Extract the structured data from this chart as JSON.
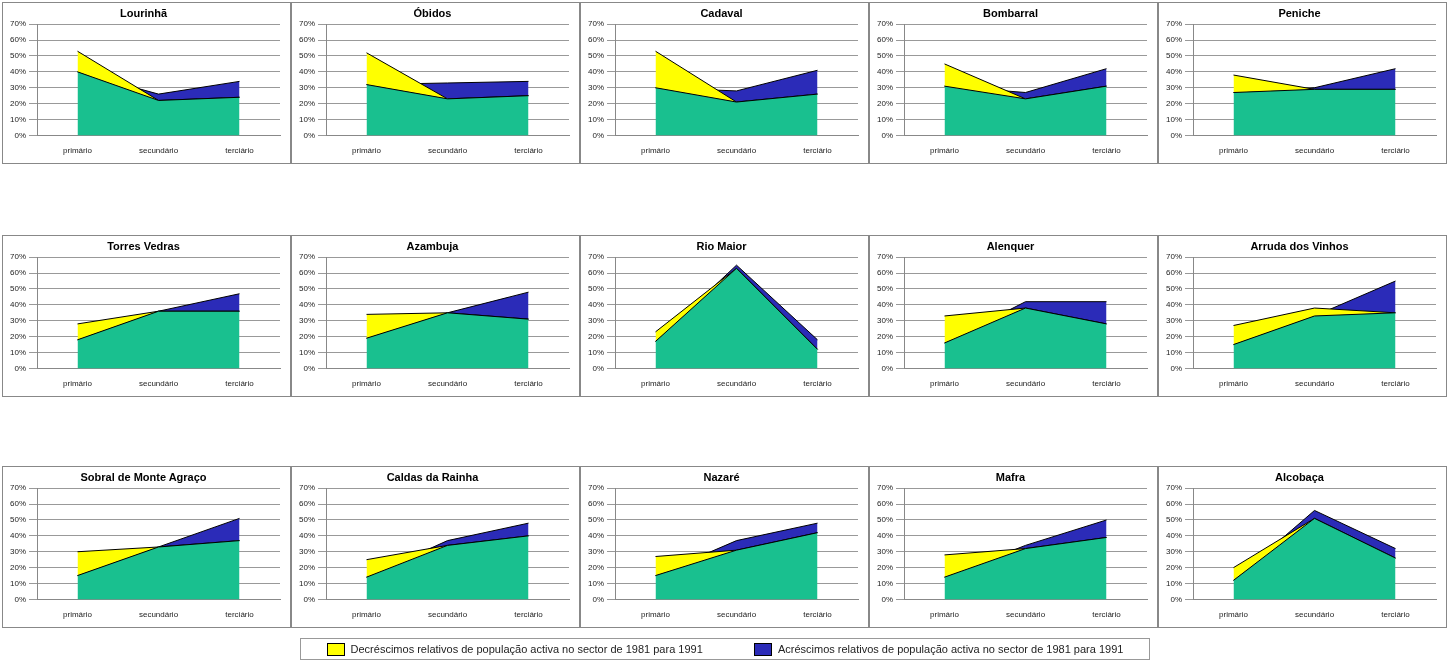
{
  "chart_data": [
    {
      "type": "area",
      "title": "Lourinhã",
      "categories": [
        "primário",
        "secundário",
        "terciário"
      ],
      "grid": "y",
      "legend": "bottom",
      "ylim": [
        0,
        70
      ],
      "yticks": [
        {
          "value": 0,
          "label": "0%"
        },
        {
          "value": 10,
          "label": "10%"
        },
        {
          "value": 20,
          "label": "20%"
        },
        {
          "value": 30,
          "label": "30%"
        },
        {
          "value": 40,
          "label": "40%"
        },
        {
          "value": 50,
          "label": "50%"
        },
        {
          "value": 60,
          "label": "60%"
        },
        {
          "value": 70,
          "label": "70%"
        }
      ],
      "series": [
        {
          "color": "#19c08f",
          "values": [
            40,
            22,
            24
          ]
        },
        {
          "name": "Decréscimos relativos de população activa no sector de 1981 para 1991",
          "color": "#ffff00",
          "values": [
            53,
            22,
            24
          ]
        },
        {
          "name": "Acréscimos relativos de população activa no sector de 1981 para 1991",
          "color": "#2b2bb8",
          "values": [
            40,
            26,
            34
          ]
        }
      ]
    },
    {
      "type": "area",
      "title": "Óbidos",
      "categories": [
        "primário",
        "secundário",
        "terciário"
      ],
      "grid": "y",
      "ylim": [
        0,
        70
      ],
      "yticks": [
        {
          "value": 0,
          "label": "0%"
        },
        {
          "value": 10,
          "label": "10%"
        },
        {
          "value": 20,
          "label": "20%"
        },
        {
          "value": 30,
          "label": "30%"
        },
        {
          "value": 40,
          "label": "40%"
        },
        {
          "value": 50,
          "label": "50%"
        },
        {
          "value": 60,
          "label": "60%"
        },
        {
          "value": 70,
          "label": "70%"
        }
      ],
      "series": [
        {
          "color": "#19c08f",
          "values": [
            32,
            23,
            25
          ]
        },
        {
          "color": "#ffff00",
          "values": [
            52,
            23,
            25
          ]
        },
        {
          "color": "#2b2bb8",
          "values": [
            32,
            33,
            34
          ]
        }
      ]
    },
    {
      "type": "area",
      "title": "Cadaval",
      "categories": [
        "primário",
        "secundário",
        "terciário"
      ],
      "grid": "y",
      "ylim": [
        0,
        70
      ],
      "yticks": [
        {
          "value": 0,
          "label": "0%"
        },
        {
          "value": 10,
          "label": "10%"
        },
        {
          "value": 20,
          "label": "20%"
        },
        {
          "value": 30,
          "label": "30%"
        },
        {
          "value": 40,
          "label": "40%"
        },
        {
          "value": 50,
          "label": "50%"
        },
        {
          "value": 60,
          "label": "60%"
        },
        {
          "value": 70,
          "label": "70%"
        }
      ],
      "series": [
        {
          "color": "#19c08f",
          "values": [
            30,
            21,
            26
          ]
        },
        {
          "color": "#ffff00",
          "values": [
            53,
            21,
            26
          ]
        },
        {
          "color": "#2b2bb8",
          "values": [
            30,
            28,
            41
          ]
        }
      ]
    },
    {
      "type": "area",
      "title": "Bombarral",
      "categories": [
        "primário",
        "secundário",
        "terciário"
      ],
      "grid": "y",
      "ylim": [
        0,
        70
      ],
      "yticks": [
        {
          "value": 0,
          "label": "0%"
        },
        {
          "value": 10,
          "label": "10%"
        },
        {
          "value": 20,
          "label": "20%"
        },
        {
          "value": 30,
          "label": "30%"
        },
        {
          "value": 40,
          "label": "40%"
        },
        {
          "value": 50,
          "label": "50%"
        },
        {
          "value": 60,
          "label": "60%"
        },
        {
          "value": 70,
          "label": "70%"
        }
      ],
      "series": [
        {
          "color": "#19c08f",
          "values": [
            31,
            23,
            31
          ]
        },
        {
          "color": "#ffff00",
          "values": [
            45,
            23,
            31
          ]
        },
        {
          "color": "#2b2bb8",
          "values": [
            31,
            27,
            42
          ]
        }
      ]
    },
    {
      "type": "area",
      "title": "Peniche",
      "categories": [
        "primário",
        "secundário",
        "terciário"
      ],
      "grid": "y",
      "ylim": [
        0,
        70
      ],
      "yticks": [
        {
          "value": 0,
          "label": "0%"
        },
        {
          "value": 10,
          "label": "10%"
        },
        {
          "value": 20,
          "label": "20%"
        },
        {
          "value": 30,
          "label": "30%"
        },
        {
          "value": 40,
          "label": "40%"
        },
        {
          "value": 50,
          "label": "50%"
        },
        {
          "value": 60,
          "label": "60%"
        },
        {
          "value": 70,
          "label": "70%"
        }
      ],
      "series": [
        {
          "color": "#19c08f",
          "values": [
            27,
            29,
            29
          ]
        },
        {
          "color": "#ffff00",
          "values": [
            38,
            29,
            29
          ]
        },
        {
          "color": "#2b2bb8",
          "values": [
            27,
            30,
            42
          ]
        }
      ]
    },
    {
      "type": "area",
      "title": "Torres Vedras",
      "categories": [
        "primário",
        "secundário",
        "terciário"
      ],
      "grid": "y",
      "ylim": [
        0,
        70
      ],
      "yticks": [
        {
          "value": 0,
          "label": "0%"
        },
        {
          "value": 10,
          "label": "10%"
        },
        {
          "value": 20,
          "label": "20%"
        },
        {
          "value": 30,
          "label": "30%"
        },
        {
          "value": 40,
          "label": "40%"
        },
        {
          "value": 50,
          "label": "50%"
        },
        {
          "value": 60,
          "label": "60%"
        },
        {
          "value": 70,
          "label": "70%"
        }
      ],
      "series": [
        {
          "color": "#19c08f",
          "values": [
            18,
            36,
            36
          ]
        },
        {
          "color": "#ffff00",
          "values": [
            28,
            36,
            36
          ]
        },
        {
          "color": "#2b2bb8",
          "values": [
            18,
            36,
            47
          ]
        }
      ]
    },
    {
      "type": "area",
      "title": "Azambuja",
      "categories": [
        "primário",
        "secundário",
        "terciário"
      ],
      "grid": "y",
      "ylim": [
        0,
        70
      ],
      "yticks": [
        {
          "value": 0,
          "label": "0%"
        },
        {
          "value": 10,
          "label": "10%"
        },
        {
          "value": 20,
          "label": "20%"
        },
        {
          "value": 30,
          "label": "30%"
        },
        {
          "value": 40,
          "label": "40%"
        },
        {
          "value": 50,
          "label": "50%"
        },
        {
          "value": 60,
          "label": "60%"
        },
        {
          "value": 70,
          "label": "70%"
        }
      ],
      "series": [
        {
          "color": "#19c08f",
          "values": [
            19,
            35,
            31
          ]
        },
        {
          "color": "#ffff00",
          "values": [
            34,
            35,
            31
          ]
        },
        {
          "color": "#2b2bb8",
          "values": [
            19,
            35,
            48
          ]
        }
      ]
    },
    {
      "type": "area",
      "title": "Rio Maior",
      "categories": [
        "primário",
        "secundário",
        "terciário"
      ],
      "grid": "y",
      "ylim": [
        0,
        70
      ],
      "yticks": [
        {
          "value": 0,
          "label": "0%"
        },
        {
          "value": 10,
          "label": "10%"
        },
        {
          "value": 20,
          "label": "20%"
        },
        {
          "value": 30,
          "label": "30%"
        },
        {
          "value": 40,
          "label": "40%"
        },
        {
          "value": 50,
          "label": "50%"
        },
        {
          "value": 60,
          "label": "60%"
        },
        {
          "value": 70,
          "label": "70%"
        }
      ],
      "series": [
        {
          "color": "#19c08f",
          "values": [
            17,
            63,
            12
          ]
        },
        {
          "color": "#ffff00",
          "values": [
            23,
            63,
            12
          ]
        },
        {
          "color": "#2b2bb8",
          "values": [
            17,
            65,
            18
          ]
        }
      ]
    },
    {
      "type": "area",
      "title": "Alenquer",
      "categories": [
        "primário",
        "secundário",
        "terciário"
      ],
      "grid": "y",
      "ylim": [
        0,
        70
      ],
      "yticks": [
        {
          "value": 0,
          "label": "0%"
        },
        {
          "value": 10,
          "label": "10%"
        },
        {
          "value": 20,
          "label": "20%"
        },
        {
          "value": 30,
          "label": "30%"
        },
        {
          "value": 40,
          "label": "40%"
        },
        {
          "value": 50,
          "label": "50%"
        },
        {
          "value": 60,
          "label": "60%"
        },
        {
          "value": 70,
          "label": "70%"
        }
      ],
      "series": [
        {
          "color": "#19c08f",
          "values": [
            16,
            38,
            28
          ]
        },
        {
          "color": "#ffff00",
          "values": [
            33,
            38,
            28
          ]
        },
        {
          "color": "#2b2bb8",
          "values": [
            16,
            42,
            42
          ]
        }
      ]
    },
    {
      "type": "area",
      "title": "Arruda dos Vinhos",
      "categories": [
        "primário",
        "secundário",
        "terciário"
      ],
      "grid": "y",
      "ylim": [
        0,
        70
      ],
      "yticks": [
        {
          "value": 0,
          "label": "0%"
        },
        {
          "value": 10,
          "label": "10%"
        },
        {
          "value": 20,
          "label": "20%"
        },
        {
          "value": 30,
          "label": "30%"
        },
        {
          "value": 40,
          "label": "40%"
        },
        {
          "value": 50,
          "label": "50%"
        },
        {
          "value": 60,
          "label": "60%"
        },
        {
          "value": 70,
          "label": "70%"
        }
      ],
      "series": [
        {
          "color": "#19c08f",
          "values": [
            15,
            33,
            35
          ]
        },
        {
          "color": "#ffff00",
          "values": [
            27,
            38,
            35
          ]
        },
        {
          "color": "#2b2bb8",
          "values": [
            15,
            33,
            55
          ]
        }
      ]
    },
    {
      "type": "area",
      "title": "Sobral de Monte Agraço",
      "categories": [
        "primário",
        "secundário",
        "terciário"
      ],
      "grid": "y",
      "ylim": [
        0,
        70
      ],
      "yticks": [
        {
          "value": 0,
          "label": "0%"
        },
        {
          "value": 10,
          "label": "10%"
        },
        {
          "value": 20,
          "label": "20%"
        },
        {
          "value": 30,
          "label": "30%"
        },
        {
          "value": 40,
          "label": "40%"
        },
        {
          "value": 50,
          "label": "50%"
        },
        {
          "value": 60,
          "label": "60%"
        },
        {
          "value": 70,
          "label": "70%"
        }
      ],
      "series": [
        {
          "color": "#19c08f",
          "values": [
            15,
            33,
            37
          ]
        },
        {
          "color": "#ffff00",
          "values": [
            30,
            33,
            37
          ]
        },
        {
          "color": "#2b2bb8",
          "values": [
            15,
            33,
            51
          ]
        }
      ]
    },
    {
      "type": "area",
      "title": "Caldas da Rainha",
      "categories": [
        "primário",
        "secundário",
        "terciário"
      ],
      "grid": "y",
      "ylim": [
        0,
        70
      ],
      "yticks": [
        {
          "value": 0,
          "label": "0%"
        },
        {
          "value": 10,
          "label": "10%"
        },
        {
          "value": 20,
          "label": "20%"
        },
        {
          "value": 30,
          "label": "30%"
        },
        {
          "value": 40,
          "label": "40%"
        },
        {
          "value": 50,
          "label": "50%"
        },
        {
          "value": 60,
          "label": "60%"
        },
        {
          "value": 70,
          "label": "70%"
        }
      ],
      "series": [
        {
          "color": "#19c08f",
          "values": [
            14,
            34,
            40
          ]
        },
        {
          "color": "#ffff00",
          "values": [
            25,
            34,
            40
          ]
        },
        {
          "color": "#2b2bb8",
          "values": [
            14,
            37,
            48
          ]
        }
      ]
    },
    {
      "type": "area",
      "title": "Nazaré",
      "categories": [
        "primário",
        "secundário",
        "terciário"
      ],
      "grid": "y",
      "ylim": [
        0,
        70
      ],
      "yticks": [
        {
          "value": 0,
          "label": "0%"
        },
        {
          "value": 10,
          "label": "10%"
        },
        {
          "value": 20,
          "label": "20%"
        },
        {
          "value": 30,
          "label": "30%"
        },
        {
          "value": 40,
          "label": "40%"
        },
        {
          "value": 50,
          "label": "50%"
        },
        {
          "value": 60,
          "label": "60%"
        },
        {
          "value": 70,
          "label": "70%"
        }
      ],
      "series": [
        {
          "color": "#19c08f",
          "values": [
            15,
            31,
            42
          ]
        },
        {
          "color": "#ffff00",
          "values": [
            27,
            31,
            42
          ]
        },
        {
          "color": "#2b2bb8",
          "values": [
            15,
            37,
            48
          ]
        }
      ]
    },
    {
      "type": "area",
      "title": "Mafra",
      "categories": [
        "primário",
        "secundário",
        "terciário"
      ],
      "grid": "y",
      "ylim": [
        0,
        70
      ],
      "yticks": [
        {
          "value": 0,
          "label": "0%"
        },
        {
          "value": 10,
          "label": "10%"
        },
        {
          "value": 20,
          "label": "20%"
        },
        {
          "value": 30,
          "label": "30%"
        },
        {
          "value": 40,
          "label": "40%"
        },
        {
          "value": 50,
          "label": "50%"
        },
        {
          "value": 60,
          "label": "60%"
        },
        {
          "value": 70,
          "label": "70%"
        }
      ],
      "series": [
        {
          "color": "#19c08f",
          "values": [
            14,
            32,
            39
          ]
        },
        {
          "color": "#ffff00",
          "values": [
            28,
            32,
            39
          ]
        },
        {
          "color": "#2b2bb8",
          "values": [
            14,
            34,
            50
          ]
        }
      ]
    },
    {
      "type": "area",
      "title": "Alcobaça",
      "categories": [
        "primário",
        "secundário",
        "terciário"
      ],
      "grid": "y",
      "ylim": [
        0,
        70
      ],
      "yticks": [
        {
          "value": 0,
          "label": "0%"
        },
        {
          "value": 10,
          "label": "10%"
        },
        {
          "value": 20,
          "label": "20%"
        },
        {
          "value": 30,
          "label": "30%"
        },
        {
          "value": 40,
          "label": "40%"
        },
        {
          "value": 50,
          "label": "50%"
        },
        {
          "value": 60,
          "label": "60%"
        },
        {
          "value": 70,
          "label": "70%"
        }
      ],
      "series": [
        {
          "color": "#19c08f",
          "values": [
            12,
            51,
            26
          ]
        },
        {
          "color": "#ffff00",
          "values": [
            20,
            51,
            26
          ]
        },
        {
          "color": "#2b2bb8",
          "values": [
            12,
            56,
            32
          ]
        }
      ]
    }
  ]
}
